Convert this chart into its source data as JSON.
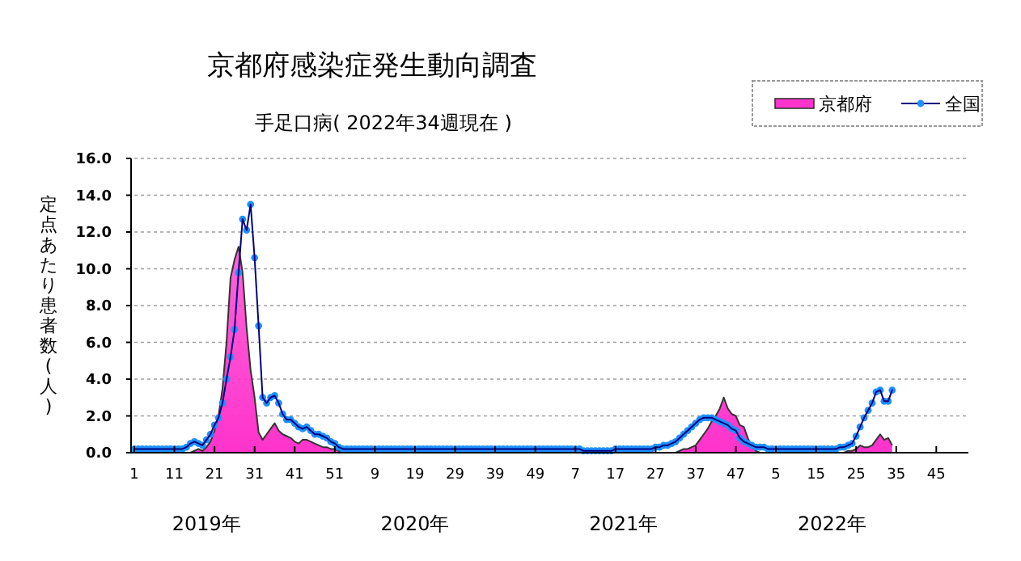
{
  "chart_data": {
    "type": "area",
    "title": "京都府感染症発生動向調査",
    "subtitle": "手足口病( 2022年34週現在 )",
    "ylabel": "定点あたり患者数(人)",
    "annotations": [
      "2019年",
      "2020年",
      "2021年",
      "2022年"
    ],
    "categories": [
      "1",
      null,
      null,
      null,
      null,
      null,
      null,
      null,
      null,
      null,
      "11",
      null,
      null,
      null,
      null,
      null,
      null,
      null,
      null,
      null,
      "21",
      null,
      null,
      null,
      null,
      null,
      null,
      null,
      null,
      null,
      "31",
      null,
      null,
      null,
      null,
      null,
      null,
      null,
      null,
      null,
      "41",
      null,
      null,
      null,
      null,
      null,
      null,
      null,
      null,
      null,
      "51",
      null,
      null,
      null,
      null,
      null,
      null,
      null,
      null,
      null,
      "9",
      null,
      null,
      null,
      null,
      null,
      null,
      null,
      null,
      null,
      "19",
      null,
      null,
      null,
      null,
      null,
      null,
      null,
      null,
      null,
      "29",
      null,
      null,
      null,
      null,
      null,
      null,
      null,
      null,
      null,
      "39",
      null,
      null,
      null,
      null,
      null,
      null,
      null,
      null,
      null,
      "49",
      null,
      null,
      null,
      null,
      null,
      null,
      null,
      null,
      null,
      "7",
      null,
      null,
      null,
      null,
      null,
      null,
      null,
      null,
      null,
      "17",
      null,
      null,
      null,
      null,
      null,
      null,
      null,
      null,
      null,
      "27",
      null,
      null,
      null,
      null,
      null,
      null,
      null,
      null,
      null,
      "37",
      null,
      null,
      null,
      null,
      null,
      null,
      null,
      null,
      null,
      "47",
      null,
      null,
      null,
      null,
      null,
      null,
      null,
      null,
      null,
      "5",
      null,
      null,
      null,
      null,
      null,
      null,
      null,
      null,
      null,
      "15",
      null,
      null,
      null,
      null,
      null,
      null,
      null,
      null,
      null,
      "25",
      null,
      null,
      null,
      null,
      null,
      null,
      null,
      null,
      null,
      "35",
      null,
      null,
      null,
      null,
      null,
      null,
      null,
      null,
      null,
      "45",
      null,
      null,
      null,
      null,
      null,
      null,
      null
    ],
    "series": [
      {
        "name": "京都府",
        "color": "#ff33cc",
        "values": [
          0,
          0,
          0,
          0,
          0,
          0,
          0,
          0,
          0,
          0,
          0,
          0,
          0,
          0,
          0,
          0.1,
          0.2,
          0.1,
          0.3,
          0.6,
          1.2,
          2.0,
          3.5,
          6.0,
          9.5,
          10.5,
          11.2,
          9.8,
          6.8,
          4.5,
          3.0,
          1.1,
          0.7,
          1.0,
          1.3,
          1.6,
          1.2,
          1.0,
          0.9,
          0.8,
          0.6,
          0.5,
          0.7,
          0.7,
          0.6,
          0.5,
          0.4,
          0.3,
          0.3,
          0.2,
          0.2,
          0.1,
          0,
          0,
          0,
          0,
          0,
          0,
          0,
          0,
          0,
          0,
          0,
          0,
          0,
          0,
          0,
          0,
          0,
          0,
          0,
          0,
          0,
          0,
          0,
          0,
          0,
          0,
          0,
          0,
          0,
          0,
          0,
          0,
          0,
          0,
          0,
          0,
          0,
          0,
          0,
          0,
          0,
          0,
          0,
          0,
          0,
          0,
          0,
          0,
          0,
          0,
          0,
          0,
          0,
          0,
          0,
          0,
          0,
          0,
          0,
          0,
          0,
          0,
          0,
          0,
          0,
          0,
          0,
          0,
          0,
          0,
          0,
          0,
          0,
          0,
          0,
          0,
          0,
          0,
          0,
          0,
          0,
          0,
          0,
          0,
          0.1,
          0.2,
          0.2,
          0.3,
          0.4,
          0.7,
          1.0,
          1.3,
          1.7,
          2.0,
          2.4,
          3.0,
          2.4,
          2.1,
          2.0,
          1.5,
          1.4,
          0.8,
          0.3,
          0.1,
          0,
          0,
          0,
          0,
          0,
          0,
          0,
          0,
          0,
          0,
          0,
          0,
          0,
          0,
          0,
          0,
          0,
          0,
          0,
          0,
          0,
          0,
          0.1,
          0.1,
          0.2,
          0.4,
          0.3,
          0.3,
          0.4,
          0.7,
          1.0,
          0.7,
          0.8,
          0.4,
          null,
          null,
          null,
          null,
          null,
          null,
          null,
          null,
          null,
          null,
          null,
          null,
          null,
          null,
          null,
          null,
          null,
          null
        ]
      },
      {
        "name": "全国",
        "type": "line",
        "color": "#1e90ff",
        "marker": "circle",
        "values": [
          0.2,
          0.2,
          0.2,
          0.2,
          0.2,
          0.2,
          0.2,
          0.2,
          0.2,
          0.2,
          0.2,
          0.2,
          0.2,
          0.3,
          0.5,
          0.6,
          0.5,
          0.4,
          0.7,
          1.0,
          1.5,
          1.9,
          2.7,
          4.0,
          5.2,
          6.7,
          9.8,
          12.7,
          12.1,
          13.5,
          10.6,
          6.9,
          3.0,
          2.7,
          3.0,
          3.1,
          2.7,
          2.1,
          1.8,
          1.8,
          1.6,
          1.4,
          1.3,
          1.4,
          1.2,
          1.0,
          1.0,
          0.9,
          0.8,
          0.6,
          0.5,
          0.3,
          0.2,
          0.2,
          0.2,
          0.2,
          0.2,
          0.2,
          0.2,
          0.2,
          0.2,
          0.2,
          0.2,
          0.2,
          0.2,
          0.2,
          0.2,
          0.2,
          0.2,
          0.2,
          0.2,
          0.2,
          0.2,
          0.2,
          0.2,
          0.2,
          0.2,
          0.2,
          0.2,
          0.2,
          0.2,
          0.2,
          0.2,
          0.2,
          0.2,
          0.2,
          0.2,
          0.2,
          0.2,
          0.2,
          0.2,
          0.2,
          0.2,
          0.2,
          0.2,
          0.2,
          0.2,
          0.2,
          0.2,
          0.2,
          0.2,
          0.2,
          0.2,
          0.2,
          0.2,
          0.2,
          0.2,
          0.2,
          0.2,
          0.2,
          0.2,
          0.2,
          0.1,
          0.1,
          0.1,
          0.1,
          0.1,
          0.1,
          0.1,
          0.1,
          0.2,
          0.2,
          0.2,
          0.2,
          0.2,
          0.2,
          0.2,
          0.2,
          0.2,
          0.2,
          0.3,
          0.3,
          0.4,
          0.4,
          0.5,
          0.6,
          0.8,
          1.0,
          1.2,
          1.4,
          1.6,
          1.8,
          1.9,
          1.9,
          1.9,
          1.8,
          1.7,
          1.6,
          1.5,
          1.3,
          1.2,
          0.8,
          0.6,
          0.5,
          0.4,
          0.3,
          0.3,
          0.3,
          0.2,
          0.2,
          0.2,
          0.2,
          0.2,
          0.2,
          0.2,
          0.2,
          0.2,
          0.2,
          0.2,
          0.2,
          0.2,
          0.2,
          0.2,
          0.2,
          0.2,
          0.2,
          0.3,
          0.3,
          0.4,
          0.5,
          0.9,
          1.4,
          1.9,
          2.3,
          2.7,
          3.3,
          3.4,
          2.8,
          2.8,
          3.4,
          null,
          null,
          null,
          null,
          null,
          null,
          null,
          null,
          null,
          null,
          null,
          null,
          null,
          null,
          null,
          null,
          null,
          null
        ]
      }
    ],
    "ylim": [
      0,
      16
    ],
    "yticks": [
      {
        "value": 0,
        "label": "0.0"
      },
      {
        "value": 2,
        "label": "2.0"
      },
      {
        "value": 4,
        "label": "4.0"
      },
      {
        "value": 6,
        "label": "6.0"
      },
      {
        "value": 8,
        "label": "8.0"
      },
      {
        "value": 10,
        "label": "10.0"
      },
      {
        "value": 12,
        "label": "12.0"
      },
      {
        "value": 14,
        "label": "14.0"
      },
      {
        "value": 16,
        "label": "16.0"
      }
    ],
    "grid": "y",
    "legend": "top right"
  }
}
